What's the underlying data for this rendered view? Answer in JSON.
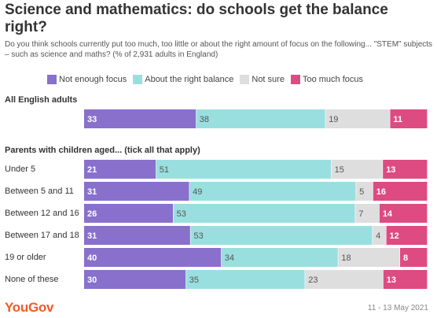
{
  "title": "Science and mathematics: do schools get the balance right?",
  "subtitle": "Do you think schools currently put too much, too little or about the right amount of focus on the following... \"STEM\" subjects – such as science and maths? (% of 2,931 adults in England)",
  "brand": "YouGov",
  "date": "11 - 13 May 2021",
  "sections": [
    {
      "label": "All English adults"
    },
    {
      "label": "Parents with children aged... (tick all that apply)"
    }
  ],
  "chart_data": {
    "type": "bar",
    "orientation": "horizontal",
    "stacked": true,
    "legend_position": "top",
    "series": [
      {
        "name": "Not enough focus",
        "color": "#8870cc"
      },
      {
        "name": "About the right balance",
        "color": "#9adfe0"
      },
      {
        "name": "Not sure",
        "color": "#dedede"
      },
      {
        "name": "Too much focus",
        "color": "#dd4b82"
      }
    ],
    "rows": [
      {
        "label": "",
        "values": [
          33,
          38,
          19,
          11
        ]
      },
      {
        "label": "Under 5",
        "values": [
          21,
          51,
          15,
          13
        ]
      },
      {
        "label": "Between 5 and 11",
        "values": [
          31,
          49,
          5,
          16
        ]
      },
      {
        "label": "Between 12 and 16",
        "values": [
          26,
          53,
          7,
          14
        ]
      },
      {
        "label": "Between 17 and 18",
        "values": [
          31,
          53,
          4,
          12
        ]
      },
      {
        "label": "19 or older",
        "values": [
          40,
          34,
          18,
          8
        ]
      },
      {
        "label": "None of these",
        "values": [
          30,
          35,
          23,
          13
        ]
      }
    ]
  }
}
